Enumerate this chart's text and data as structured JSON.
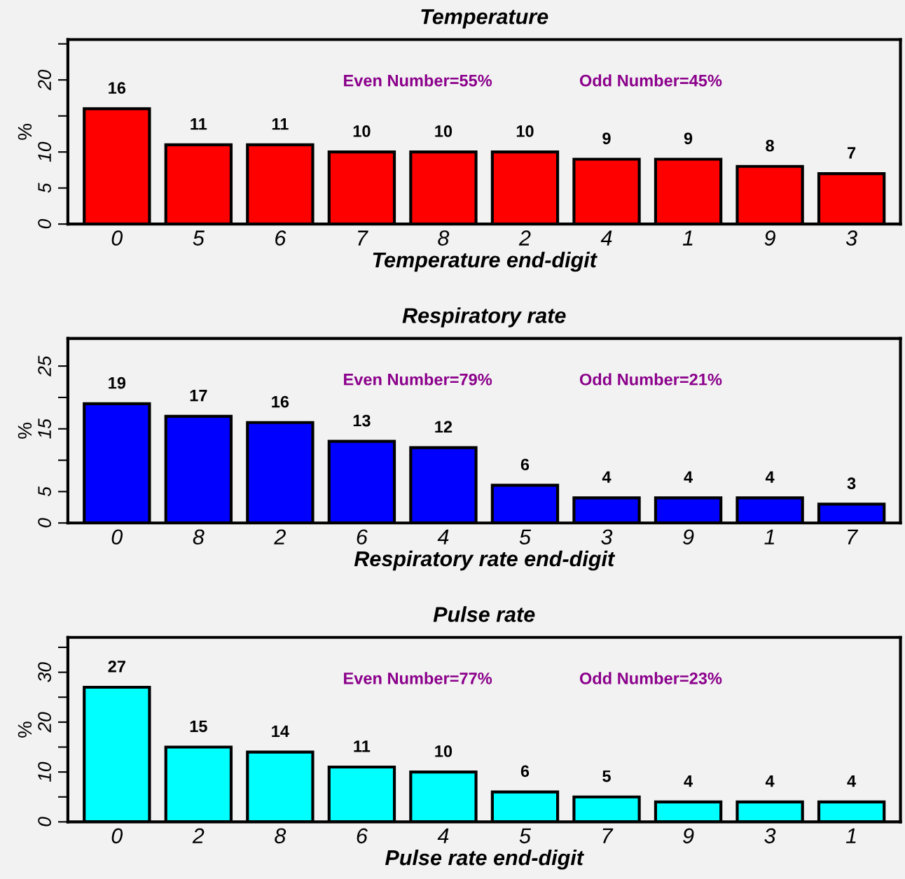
{
  "chart_data": [
    {
      "type": "bar",
      "title": "Temperature",
      "xlabel": "Temperature end-digit",
      "ylabel": "%",
      "categories": [
        "0",
        "5",
        "6",
        "7",
        "8",
        "2",
        "4",
        "1",
        "9",
        "3"
      ],
      "values": [
        16,
        11,
        11,
        10,
        10,
        10,
        9,
        9,
        8,
        7
      ],
      "color": "#ff0000",
      "ylim": [
        0,
        25.6
      ],
      "yticks": [
        0,
        5,
        10,
        {
          "value": 15,
          "label": null
        },
        20,
        {
          "value": 25,
          "label": null
        }
      ],
      "data_labels": true,
      "grid": false,
      "legend": false,
      "annotations": [
        "Even Number=55%",
        "Odd Number=45%"
      ]
    },
    {
      "type": "bar",
      "title": "Respiratory rate",
      "xlabel": "Respiratory rate end-digit",
      "ylabel": "%",
      "categories": [
        "0",
        "8",
        "2",
        "6",
        "4",
        "5",
        "3",
        "9",
        "1",
        "7"
      ],
      "values": [
        19,
        17,
        16,
        13,
        12,
        6,
        4,
        4,
        4,
        3
      ],
      "color": "#0000ff",
      "ylim": [
        0,
        29.4
      ],
      "yticks": [
        0,
        5,
        {
          "value": 10,
          "label": null
        },
        15,
        {
          "value": 20,
          "label": null
        },
        25
      ],
      "data_labels": true,
      "grid": false,
      "legend": false,
      "annotations": [
        "Even Number=79%",
        "Odd Number=21%"
      ]
    },
    {
      "type": "bar",
      "title": "Pulse rate",
      "xlabel": "Pulse rate end-digit",
      "ylabel": "%",
      "categories": [
        "0",
        "2",
        "8",
        "6",
        "4",
        "5",
        "7",
        "9",
        "3",
        "1"
      ],
      "values": [
        27,
        15,
        14,
        11,
        10,
        6,
        5,
        4,
        4,
        4
      ],
      "color": "#00ffff",
      "ylim": [
        0,
        37
      ],
      "yticks": [
        0,
        {
          "value": 5,
          "label": null
        },
        10,
        {
          "value": 15,
          "label": null
        },
        20,
        {
          "value": 25,
          "label": null
        },
        30,
        {
          "value": 35,
          "label": null
        }
      ],
      "data_labels": true,
      "grid": false,
      "legend": false,
      "annotations": [
        "Even Number=77%",
        "Odd Number=23%"
      ]
    }
  ]
}
